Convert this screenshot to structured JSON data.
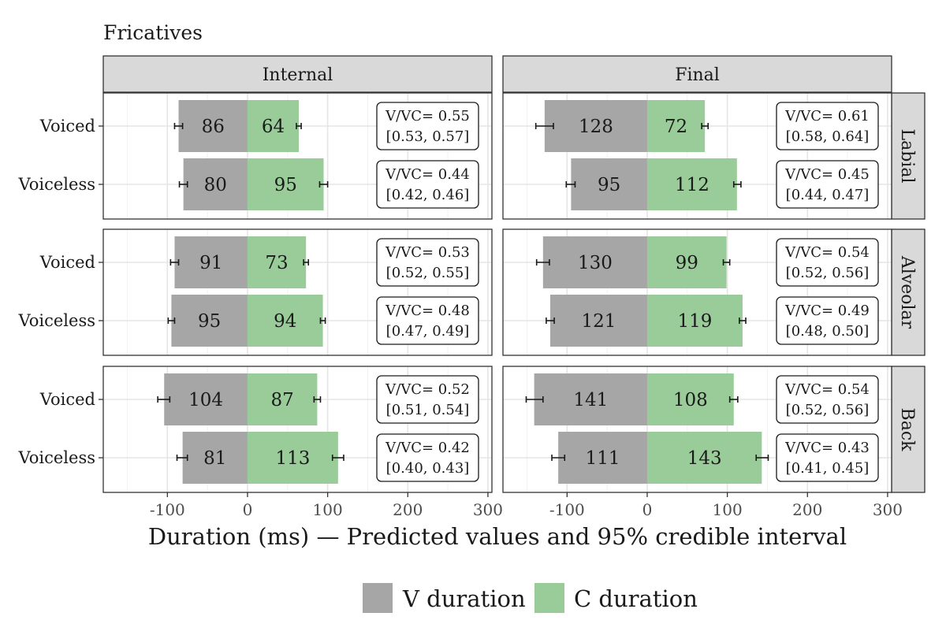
{
  "chart_data": {
    "type": "bar",
    "title": "Fricatives",
    "xlabel": "Duration (ms) — Predicted values and 95% credible interval",
    "ylabel": "",
    "xlim": [
      -180,
      305
    ],
    "xticks": [
      -100,
      0,
      100,
      200,
      300
    ],
    "xtick_labels": [
      "-100",
      "0",
      "100",
      "200",
      "300"
    ],
    "grid": true,
    "legend_position": "bottom",
    "orientation": "horizontal",
    "categories": [
      "Voiced",
      "Voiceless"
    ],
    "column_facets": [
      "Internal",
      "Final"
    ],
    "row_facets": [
      "Labial",
      "Alveolar",
      "Back"
    ],
    "series": [
      {
        "name": "V duration",
        "color": "#a6a6a6",
        "direction": "negative"
      },
      {
        "name": "C duration",
        "color": "#99cc99",
        "direction": "positive"
      }
    ],
    "panels": [
      {
        "column": "Internal",
        "row": "Labial",
        "bars": [
          {
            "category": "Voiced",
            "v": 86,
            "v_label": "86",
            "v_ci": [
              81,
              91
            ],
            "c": 64,
            "c_label": "64",
            "c_ci": [
              61,
              67
            ],
            "ratio_text": "V/VC= 0.55",
            "ratio_ci_text": "[0.53, 0.57]"
          },
          {
            "category": "Voiceless",
            "v": 80,
            "v_label": "80",
            "v_ci": [
              75,
              85
            ],
            "c": 95,
            "c_label": "95",
            "c_ci": [
              90,
              100
            ],
            "ratio_text": "V/VC= 0.44",
            "ratio_ci_text": "[0.42, 0.46]"
          }
        ]
      },
      {
        "column": "Final",
        "row": "Labial",
        "bars": [
          {
            "category": "Voiced",
            "v": 128,
            "v_label": "128",
            "v_ci": [
              117,
              139
            ],
            "c": 72,
            "c_label": "72",
            "c_ci": [
              68,
              76
            ],
            "ratio_text": "V/VC= 0.61",
            "ratio_ci_text": "[0.58, 0.64]"
          },
          {
            "category": "Voiceless",
            "v": 95,
            "v_label": "95",
            "v_ci": [
              90,
              101
            ],
            "c": 112,
            "c_label": "112",
            "c_ci": [
              108,
              117
            ],
            "ratio_text": "V/VC= 0.45",
            "ratio_ci_text": "[0.44, 0.47]"
          }
        ]
      },
      {
        "column": "Internal",
        "row": "Alveolar",
        "bars": [
          {
            "category": "Voiced",
            "v": 91,
            "v_label": "91",
            "v_ci": [
              86,
              96
            ],
            "c": 73,
            "c_label": "73",
            "c_ci": [
              70,
              76
            ],
            "ratio_text": "V/VC= 0.53",
            "ratio_ci_text": "[0.52, 0.55]"
          },
          {
            "category": "Voiceless",
            "v": 95,
            "v_label": "95",
            "v_ci": [
              91,
              99
            ],
            "c": 94,
            "c_label": "94",
            "c_ci": [
              91,
              97
            ],
            "ratio_text": "V/VC= 0.48",
            "ratio_ci_text": "[0.47, 0.49]"
          }
        ]
      },
      {
        "column": "Final",
        "row": "Alveolar",
        "bars": [
          {
            "category": "Voiced",
            "v": 130,
            "v_label": "130",
            "v_ci": [
              122,
              138
            ],
            "c": 99,
            "c_label": "99",
            "c_ci": [
              95,
              103
            ],
            "ratio_text": "V/VC= 0.54",
            "ratio_ci_text": "[0.52, 0.56]"
          },
          {
            "category": "Voiceless",
            "v": 121,
            "v_label": "121",
            "v_ci": [
              116,
              126
            ],
            "c": 119,
            "c_label": "119",
            "c_ci": [
              115,
              123
            ],
            "ratio_text": "V/VC= 0.49",
            "ratio_ci_text": "[0.48, 0.50]"
          }
        ]
      },
      {
        "column": "Internal",
        "row": "Back",
        "bars": [
          {
            "category": "Voiced",
            "v": 104,
            "v_label": "104",
            "v_ci": [
              97,
              112
            ],
            "c": 87,
            "c_label": "87",
            "c_ci": [
              83,
              91
            ],
            "ratio_text": "V/VC= 0.52",
            "ratio_ci_text": "[0.51, 0.54]"
          },
          {
            "category": "Voiceless",
            "v": 81,
            "v_label": "81",
            "v_ci": [
              75,
              88
            ],
            "c": 113,
            "c_label": "113",
            "c_ci": [
              106,
              120
            ],
            "ratio_text": "V/VC= 0.42",
            "ratio_ci_text": "[0.40, 0.43]"
          }
        ]
      },
      {
        "column": "Final",
        "row": "Back",
        "bars": [
          {
            "category": "Voiced",
            "v": 141,
            "v_label": "141",
            "v_ci": [
              130,
              151
            ],
            "c": 108,
            "c_label": "108",
            "c_ci": [
              103,
              113
            ],
            "ratio_text": "V/VC= 0.54",
            "ratio_ci_text": "[0.52, 0.56]"
          },
          {
            "category": "Voiceless",
            "v": 111,
            "v_label": "111",
            "v_ci": [
              103,
              119
            ],
            "c": 143,
            "c_label": "143",
            "c_ci": [
              136,
              151
            ],
            "ratio_text": "V/VC= 0.43",
            "ratio_ci_text": "[0.41, 0.45]"
          }
        ]
      }
    ]
  }
}
